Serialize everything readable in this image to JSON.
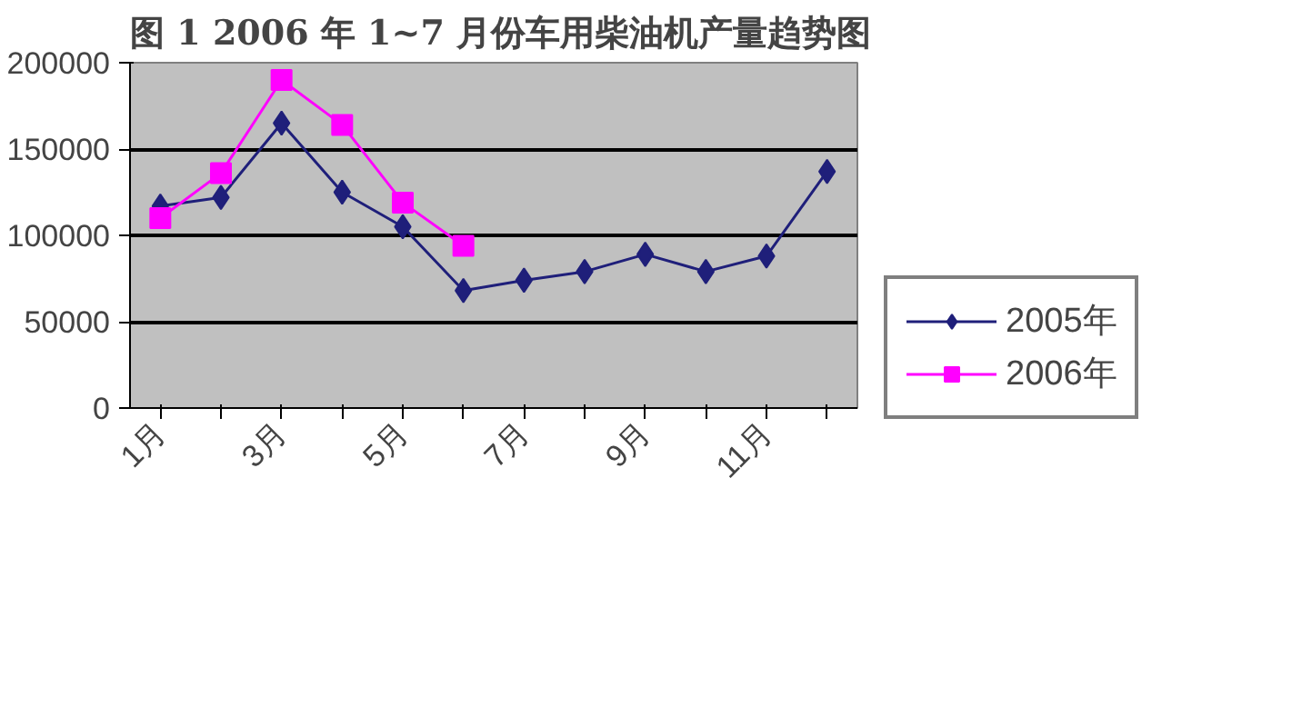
{
  "chart_data": {
    "type": "line",
    "title": "图 1   2006 年 1~7 月份车用柴油机产量趋势图",
    "categories": [
      "1月",
      null,
      "3月",
      null,
      "5月",
      null,
      "7月",
      null,
      "9月",
      null,
      "11月",
      null
    ],
    "series": [
      {
        "name": "2005年",
        "color": "#1f1f7a",
        "marker": "diamond",
        "values": [
          117000,
          122000,
          165000,
          125000,
          105000,
          68000,
          74000,
          79000,
          89000,
          79000,
          88000,
          137000
        ]
      },
      {
        "name": "2006年",
        "color": "#ff00ff",
        "marker": "square",
        "values": [
          110000,
          136000,
          190000,
          164000,
          119000,
          94000,
          null,
          null,
          null,
          null,
          null,
          null
        ]
      }
    ],
    "ylim": [
      0,
      200000
    ],
    "yticks": [
      0,
      50000,
      100000,
      150000,
      200000
    ],
    "grid": "y",
    "legend": "right"
  }
}
